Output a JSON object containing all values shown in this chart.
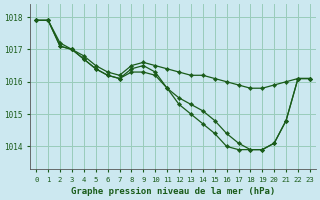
{
  "title": "Graphe pression niveau de la mer (hPa)",
  "background_color": "#cce8f0",
  "grid_color": "#99ccbb",
  "line_color": "#1a5c1a",
  "xlim": [
    -0.5,
    23.5
  ],
  "ylim": [
    1013.3,
    1018.4
  ],
  "yticks": [
    1014,
    1015,
    1016,
    1017,
    1018
  ],
  "xticks": [
    0,
    1,
    2,
    3,
    4,
    5,
    6,
    7,
    8,
    9,
    10,
    11,
    12,
    13,
    14,
    15,
    16,
    17,
    18,
    19,
    20,
    21,
    22,
    23
  ],
  "figsize": [
    3.2,
    2.0
  ],
  "dpi": 100,
  "series": [
    [
      1017.9,
      1017.9,
      1017.2,
      1017.0,
      1016.8,
      1016.5,
      1016.3,
      1016.2,
      1016.5,
      1016.6,
      1016.5,
      1016.4,
      1016.3,
      1016.2,
      1016.2,
      1016.1,
      1016.0,
      1015.9,
      1015.8,
      1015.8,
      1015.9,
      1016.0,
      1016.1,
      1016.1
    ],
    [
      1017.9,
      1017.9,
      1017.1,
      1017.0,
      1016.7,
      1016.4,
      1016.2,
      1016.1,
      1016.3,
      1016.3,
      1016.2,
      1015.8,
      1015.5,
      1015.3,
      1015.1,
      1014.8,
      1014.4,
      1014.1,
      1013.9,
      1013.9,
      1014.1,
      1014.8,
      1016.1,
      1016.1
    ],
    [
      1017.9,
      1017.9,
      1017.1,
      1017.0,
      1016.7,
      1016.4,
      1016.2,
      1016.1,
      1016.4,
      1016.5,
      1016.3,
      1015.8,
      1015.3,
      1015.0,
      1014.7,
      1014.4,
      1014.0,
      1013.9,
      1013.9,
      1013.9,
      1014.1,
      1014.8,
      1016.1,
      1016.1
    ]
  ]
}
